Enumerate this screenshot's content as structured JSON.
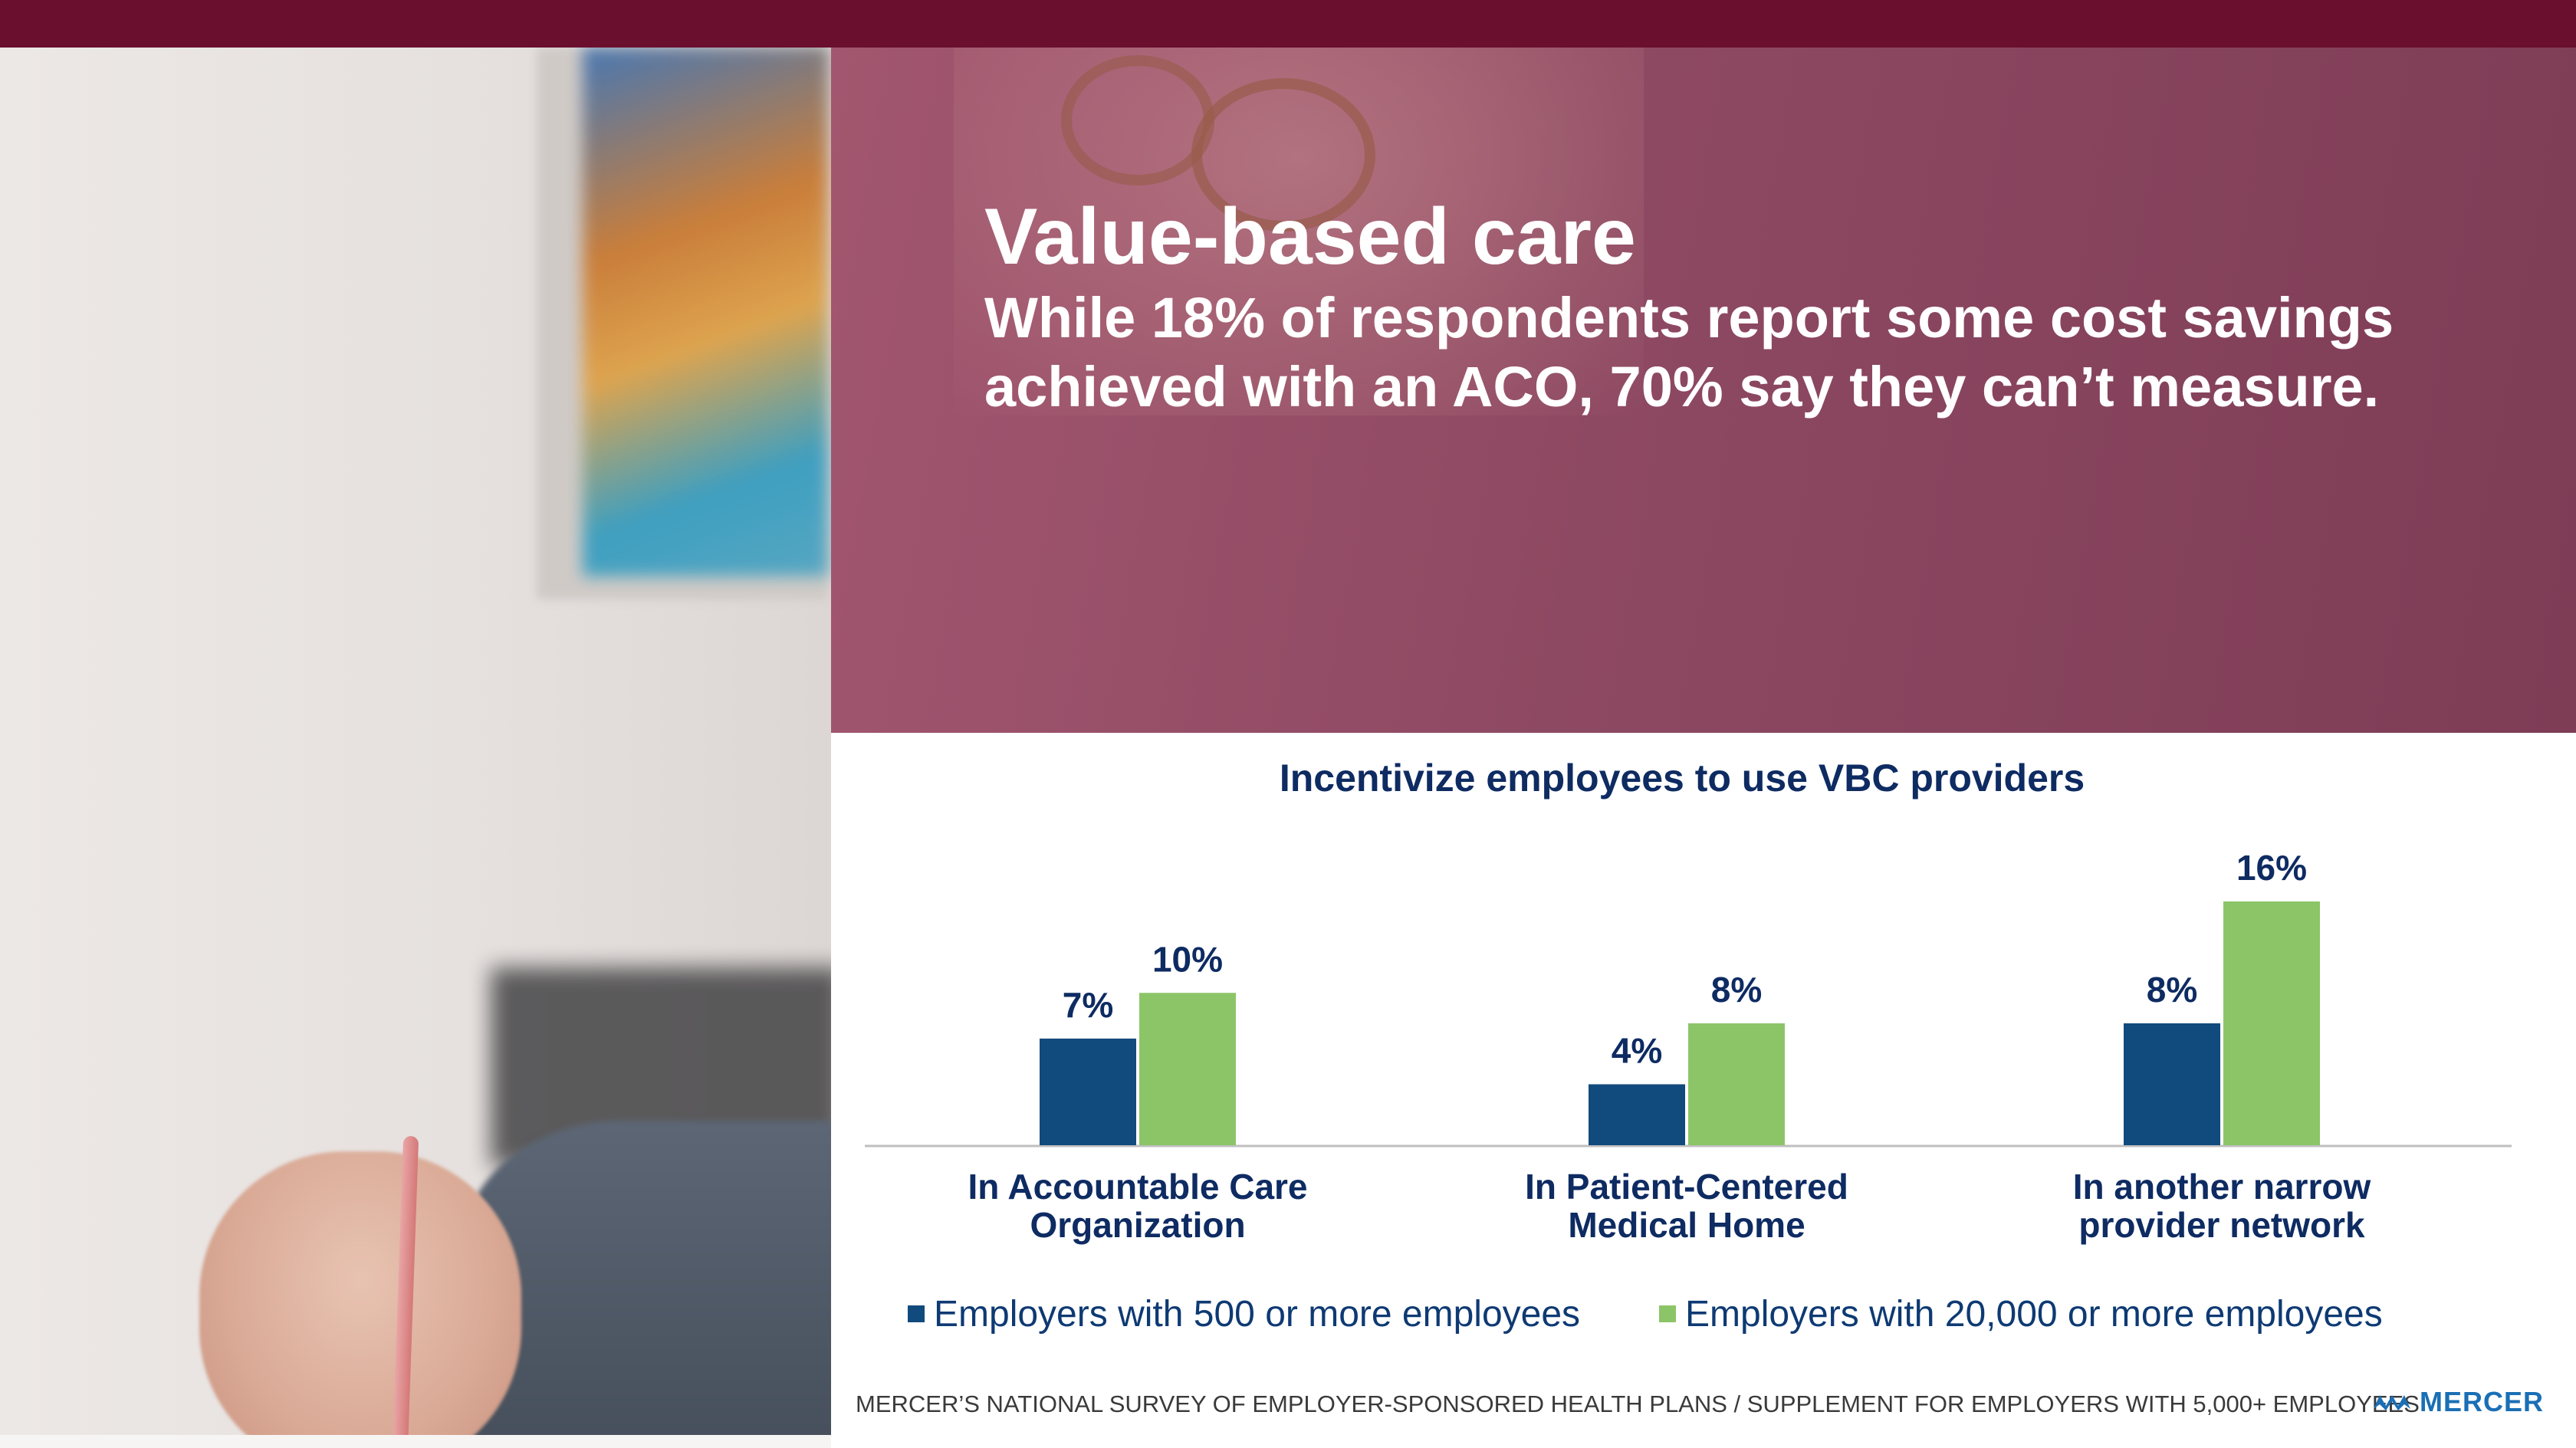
{
  "colors": {
    "top_bar": "#6a0f2e",
    "series_500": "#114a7c",
    "series_20000": "#8cc567",
    "label_text": "#0e2b62",
    "brand": "#1a6fb5"
  },
  "headline": {
    "title": "Value-based care",
    "subtitle": "While 18% of respondents report some cost savings achieved with an ACO, 70% say they can’t measure."
  },
  "chart_data": {
    "type": "bar",
    "title": "Incentivize employees to use VBC providers",
    "categories": [
      [
        "In Accountable Care",
        "Organization"
      ],
      [
        "In Patient-Centered",
        "Medical Home"
      ],
      [
        "In another narrow",
        "provider network"
      ]
    ],
    "series": [
      {
        "name": "Employers with 500 or more employees",
        "values": [
          7,
          4,
          8
        ],
        "labels": [
          "7%",
          "4%",
          "8%"
        ]
      },
      {
        "name": "Employers with 20,000 or more employees",
        "values": [
          10,
          8,
          16
        ],
        "labels": [
          "10%",
          "8%",
          "16%"
        ]
      }
    ],
    "ylim": [
      0,
      16
    ],
    "grid": false,
    "legend_position": "bottom"
  },
  "footer": {
    "source": "MERCER’S NATIONAL SURVEY OF EMPLOYER-SPONSORED HEALTH PLANS / SUPPLEMENT FOR EMPLOYERS WITH 5,000+ EMPLOYEES",
    "brand_name": "MERCER",
    "brand_icon": "mercer-logo-icon"
  }
}
